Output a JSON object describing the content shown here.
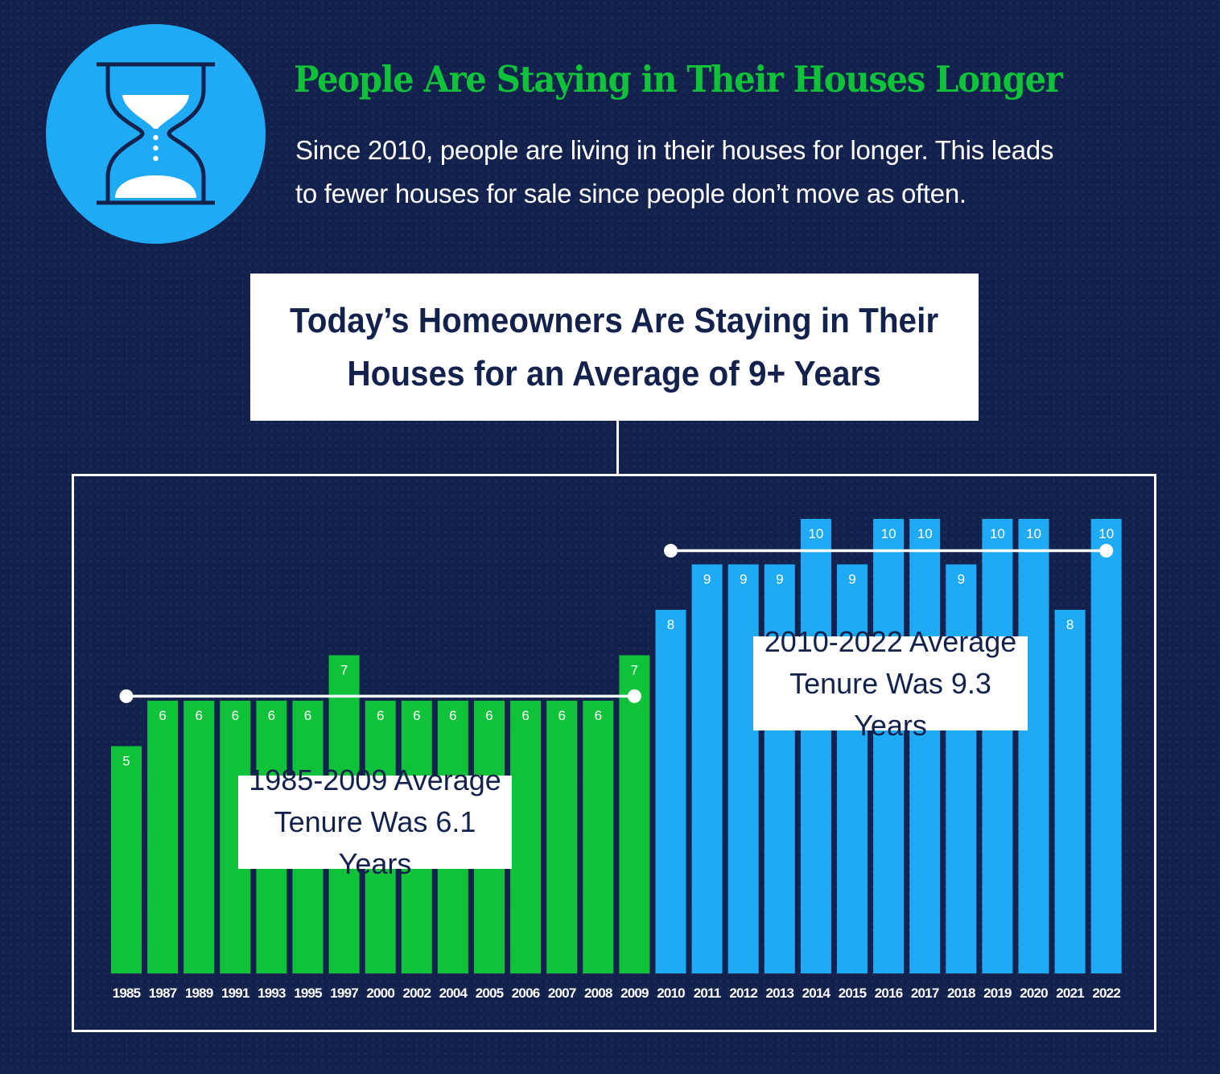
{
  "header": {
    "title": "People Are Staying in Their Houses Longer",
    "subtitle": "Since 2010, people are living in their houses for longer. This leads\nto fewer houses for sale since people don’t move as often.",
    "icon": "hourglass-icon"
  },
  "callout": {
    "text": "Today’s Homeowners Are Staying in Their\nHouses for an Average of 9+ Years"
  },
  "averages": {
    "early": {
      "label": "1985-2009 Average\nTenure Was 6.1 Years",
      "value": 6.1,
      "from": "1985",
      "to": "2009"
    },
    "recent": {
      "label": "2010-2022 Average\nTenure Was 9.3 Years",
      "value": 9.3,
      "from": "2010",
      "to": "2022"
    }
  },
  "colors": {
    "background": "#13214d",
    "early_bars": "#0fc23a",
    "recent_bars": "#1eaaf5",
    "title_green": "#0fc23a",
    "text_navy": "#13214d"
  },
  "chart_data": {
    "type": "bar",
    "title": "Today’s Homeowners Are Staying in Their Houses for an Average of 9+ Years",
    "xlabel": "",
    "ylabel": "",
    "ylim": [
      0,
      10
    ],
    "grid": false,
    "categories": [
      "1985",
      "1987",
      "1989",
      "1991",
      "1993",
      "1995",
      "1997",
      "2000",
      "2002",
      "2004",
      "2005",
      "2006",
      "2007",
      "2008",
      "2009",
      "2010",
      "2011",
      "2012",
      "2013",
      "2014",
      "2015",
      "2016",
      "2017",
      "2018",
      "2019",
      "2020",
      "2021",
      "2022"
    ],
    "values": [
      5,
      6,
      6,
      6,
      6,
      6,
      7,
      6,
      6,
      6,
      6,
      6,
      6,
      6,
      7,
      8,
      9,
      9,
      9,
      10,
      9,
      10,
      10,
      9,
      10,
      10,
      8,
      10
    ],
    "groups": [
      {
        "range": [
          "1985",
          "2009"
        ],
        "color": "#0fc23a"
      },
      {
        "range": [
          "2010",
          "2022"
        ],
        "color": "#1eaaf5"
      }
    ],
    "data_labels": [
      "5",
      "6",
      "6",
      "6",
      "6",
      "6",
      "7",
      "6",
      "6",
      "6",
      "6",
      "6",
      "6",
      "6",
      "7",
      "8",
      "9",
      "9",
      "9",
      "10",
      "9",
      "10",
      "10",
      "9",
      "10",
      "10",
      "8",
      "10"
    ],
    "annotations": [
      "1985-2009 Average Tenure Was 6.1 Years",
      "2010-2022 Average Tenure Was 9.3 Years"
    ]
  }
}
